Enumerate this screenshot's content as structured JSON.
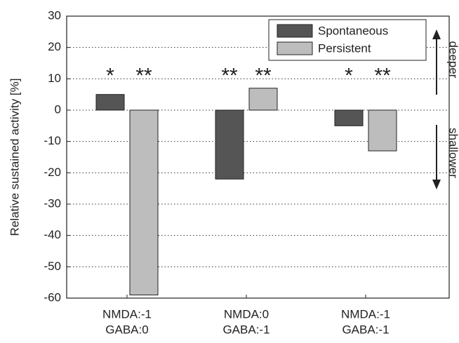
{
  "chart_data": {
    "type": "bar",
    "ylabel": "Relative sustained activity [%]",
    "categories": [
      [
        "NMDA:-1",
        "GABA:0"
      ],
      [
        "NMDA:0",
        "GABA:-1"
      ],
      [
        "NMDA:-1",
        "GABA:-1"
      ]
    ],
    "series": [
      {
        "name": "Spontaneous",
        "color": "#555555",
        "values": [
          5,
          -22,
          -5
        ],
        "significance": [
          "*",
          "**",
          "*"
        ]
      },
      {
        "name": "Persistent",
        "color": "#bdbdbd",
        "values": [
          -59,
          7,
          -13
        ],
        "significance": [
          "**",
          "**",
          "**"
        ]
      }
    ],
    "ylim": [
      -60,
      30
    ],
    "yticks": [
      -60,
      -50,
      -40,
      -30,
      -20,
      -10,
      0,
      10,
      20,
      30
    ],
    "grid": true,
    "legend": "upper right",
    "annotations": [
      "deeper",
      "shallower"
    ]
  }
}
